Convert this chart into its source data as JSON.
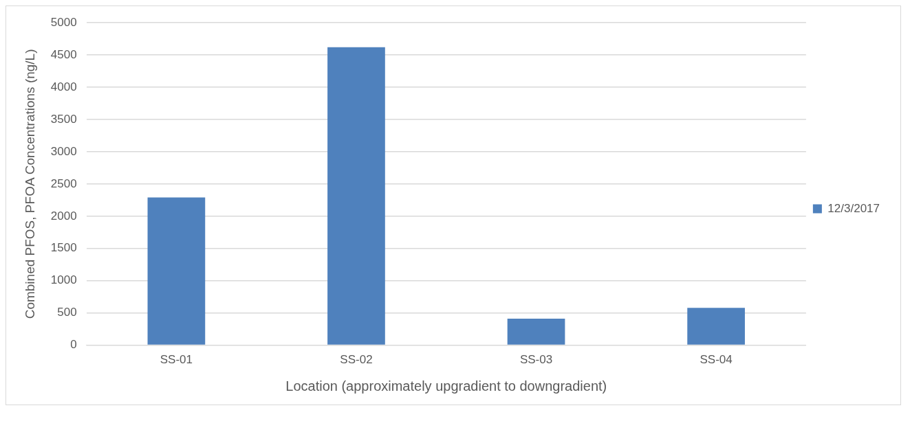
{
  "chart_data": {
    "type": "bar",
    "xlabel": "Location (approximately upgradient to downgradient)",
    "ylabel": "Combined PFOS, PFOA Concentrations (ng/L)",
    "categories": [
      "SS-01",
      "SS-02",
      "SS-03",
      "SS-04"
    ],
    "series": [
      {
        "name": "12/3/2017",
        "color": "#4f81bd",
        "values": [
          2290,
          4620,
          410,
          580
        ]
      }
    ],
    "ylim": [
      0,
      5000
    ],
    "yticks": [
      0,
      500,
      1000,
      1500,
      2000,
      2500,
      3000,
      3500,
      4000,
      4500,
      5000
    ],
    "grid": "y",
    "legend": "right"
  }
}
